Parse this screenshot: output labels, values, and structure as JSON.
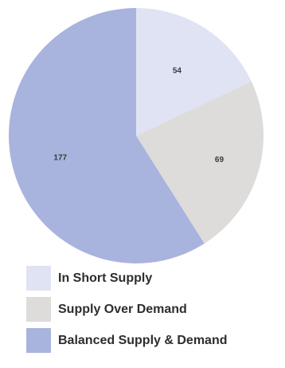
{
  "chart_data": {
    "type": "pie",
    "title": "",
    "slices": [
      {
        "label": "In Short Supply",
        "value": 54,
        "color": "#dfe3f4"
      },
      {
        "label": "Supply Over Demand",
        "value": 69,
        "color": "#dedbdb"
      },
      {
        "label": "Balanced Supply & Demand",
        "value": 177,
        "color": "#a8b4de"
      }
    ],
    "start_angle_deg": 0,
    "direction": "clockwise",
    "legend_position": "bottom"
  }
}
